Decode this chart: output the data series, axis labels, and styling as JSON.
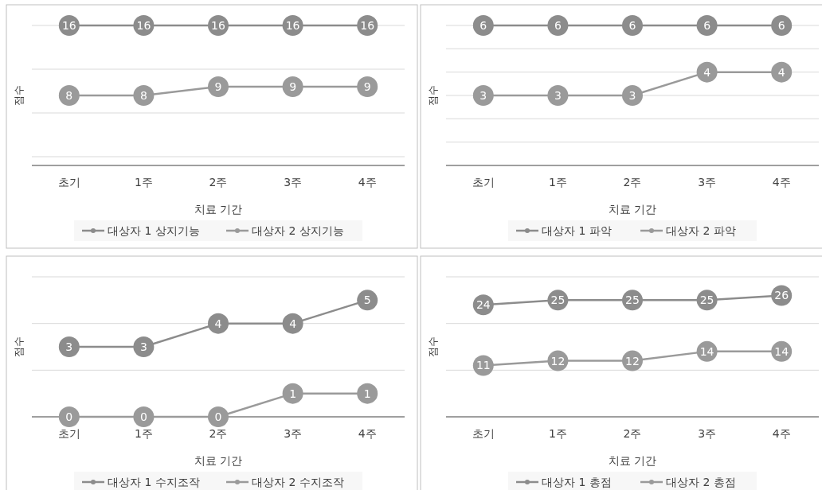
{
  "chart_data": [
    {
      "type": "line",
      "xlabel": "치료 기간",
      "ylabel": "점수",
      "categories": [
        "초기",
        "1주",
        "2주",
        "3주",
        "4주"
      ],
      "ylim": [
        0,
        16
      ],
      "yticks": [
        {
          "value": 1,
          "label": null
        },
        {
          "value": 6,
          "label": null
        },
        {
          "value": 11,
          "label": null
        },
        {
          "value": 16,
          "label": null
        }
      ],
      "grid": "y",
      "legend": "bottom",
      "marker": "circle",
      "data_labels": true,
      "series": [
        {
          "name": "대상자 1 상지기능",
          "color": "#8c8c8c",
          "values": [
            16,
            16,
            16,
            16,
            16
          ]
        },
        {
          "name": "대상자 2 상지기능",
          "color": "#9a9a9a",
          "values": [
            8,
            8,
            9,
            9,
            9
          ]
        }
      ]
    },
    {
      "type": "line",
      "xlabel": "치료 기간",
      "ylabel": "점수",
      "categories": [
        "초기",
        "1주",
        "2주",
        "3주",
        "4주"
      ],
      "ylim": [
        0,
        6
      ],
      "yticks": [
        {
          "value": 1,
          "label": null
        },
        {
          "value": 2,
          "label": null
        },
        {
          "value": 3,
          "label": null
        },
        {
          "value": 4,
          "label": null
        },
        {
          "value": 5,
          "label": null
        },
        {
          "value": 6,
          "label": null
        }
      ],
      "grid": "y",
      "legend": "bottom",
      "marker": "circle",
      "data_labels": true,
      "series": [
        {
          "name": "대상자 1 파악",
          "color": "#8c8c8c",
          "values": [
            6,
            6,
            6,
            6,
            6
          ]
        },
        {
          "name": "대상자 2 파악",
          "color": "#9a9a9a",
          "values": [
            3,
            3,
            3,
            4,
            4
          ]
        }
      ]
    },
    {
      "type": "line",
      "xlabel": "치료 기간",
      "ylabel": "점수",
      "categories": [
        "초기",
        "1주",
        "2주",
        "3주",
        "4주"
      ],
      "ylim": [
        0,
        6
      ],
      "yticks": [
        {
          "value": 2,
          "label": null
        },
        {
          "value": 4,
          "label": null
        },
        {
          "value": 6,
          "label": null
        }
      ],
      "grid": "y",
      "legend": "bottom",
      "marker": "circle",
      "data_labels": true,
      "series": [
        {
          "name": "대상자 1 수지조작",
          "color": "#8c8c8c",
          "values": [
            3,
            3,
            4,
            4,
            5
          ]
        },
        {
          "name": "대상자 2 수지조작",
          "color": "#9a9a9a",
          "values": [
            0,
            0,
            0,
            1,
            1
          ]
        }
      ]
    },
    {
      "type": "line",
      "xlabel": "치료 기간",
      "ylabel": "점수",
      "categories": [
        "초기",
        "1주",
        "2주",
        "3주",
        "4주"
      ],
      "ylim": [
        0,
        30
      ],
      "yticks": [
        {
          "value": 10,
          "label": null
        },
        {
          "value": 20,
          "label": null
        },
        {
          "value": 30,
          "label": null
        }
      ],
      "grid": "y",
      "legend": "bottom",
      "marker": "circle",
      "data_labels": true,
      "series": [
        {
          "name": "대상자 1 총점",
          "color": "#8c8c8c",
          "values": [
            24,
            25,
            25,
            25,
            26
          ]
        },
        {
          "name": "대상자 2 총점",
          "color": "#9a9a9a",
          "values": [
            11,
            12,
            12,
            14,
            14
          ]
        }
      ]
    }
  ]
}
